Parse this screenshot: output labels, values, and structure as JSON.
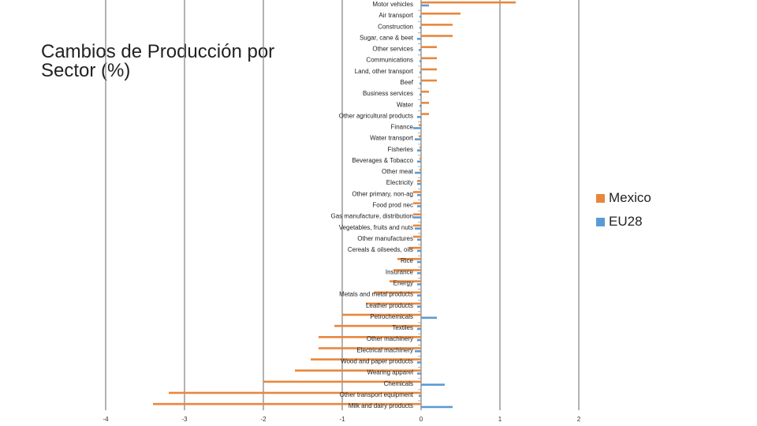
{
  "colors": {
    "mexico": "#E8873B",
    "eu28": "#5B9BD5",
    "grid": "#808080"
  },
  "chart_data": {
    "type": "bar",
    "orientation": "horizontal",
    "title": "Cambios de Producción por Sector (%)",
    "xlim": [
      -4,
      2
    ],
    "xticks": [
      "-4",
      "-3",
      "-2",
      "-1",
      "0",
      "1",
      "2"
    ],
    "grid": "vertical major gridlines",
    "legend_position": "right",
    "categories": [
      "Motor vehicles",
      "Air transport",
      "Construction",
      "Sugar, cane & beet",
      "Other services",
      "Communications",
      "Land, other transport",
      "Beef",
      "Business services",
      "Water",
      "Other agricultural products",
      "Finance",
      "Water transport",
      "Fisheries",
      "Beverages & Tobacco",
      "Other meat",
      "Electricity",
      "Other primary, non-ag",
      "Food prod nec",
      "Gas manufacture, distribution",
      "Vegetables, fruits and nuts",
      "Other manufactures",
      "Cereals & oilseeds, oils",
      "Rice",
      "Insurance",
      "Energy",
      "Metals and metal products",
      "Leather products",
      "Petrochemicals",
      "Textiles",
      "Other machinery",
      "Electrical machinery",
      "Wood and paper products",
      "Wearing apparel",
      "Chemicals",
      "Other transport equipment",
      "Milk and dairy products"
    ],
    "series": [
      {
        "name": "Mexico",
        "values": [
          1.2,
          0.5,
          0.4,
          0.4,
          0.2,
          0.2,
          0.2,
          0.2,
          0.1,
          0.1,
          0.1,
          -0.03,
          -0.03,
          -0.02,
          -0.02,
          -0.02,
          -0.05,
          -0.1,
          -0.1,
          -0.1,
          -0.1,
          -0.1,
          -0.15,
          -0.3,
          -0.35,
          -0.4,
          -0.6,
          -0.7,
          -1.0,
          -1.1,
          -1.3,
          -1.3,
          -1.4,
          -1.6,
          -2.0,
          -3.2,
          -3.4
        ]
      },
      {
        "name": "EU28",
        "values": [
          0.1,
          -0.02,
          -0.02,
          -0.05,
          -0.03,
          -0.02,
          -0.02,
          -0.02,
          -0.02,
          -0.02,
          -0.05,
          -0.1,
          -0.08,
          -0.05,
          -0.05,
          -0.08,
          -0.05,
          -0.05,
          -0.05,
          -0.1,
          -0.08,
          -0.05,
          -0.05,
          -0.05,
          -0.05,
          -0.05,
          -0.05,
          -0.05,
          0.2,
          -0.05,
          -0.05,
          -0.08,
          -0.05,
          -0.05,
          0.3,
          -0.03,
          0.4
        ]
      }
    ]
  }
}
